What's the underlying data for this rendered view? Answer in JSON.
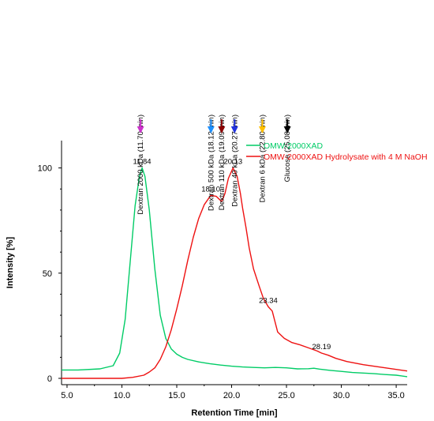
{
  "chart_data": {
    "type": "line",
    "xlabel": "Retention Time [min]",
    "ylabel": "Intensity [%]",
    "xlim": [
      4.5,
      36
    ],
    "ylim": [
      -3,
      113
    ],
    "x_ticks": [
      5.0,
      10.0,
      15.0,
      20.0,
      25.0,
      30.0,
      35.0
    ],
    "x_tick_labels": [
      "5.0",
      "10.0",
      "15.0",
      "20.0",
      "25.0",
      "30.0",
      "35.0"
    ],
    "y_ticks": [
      0,
      50,
      100
    ],
    "y_tick_labels": [
      "0",
      "50",
      "100"
    ],
    "grid": false,
    "legend_position": "top-right",
    "series": [
      {
        "name": "OMW-2000XAD",
        "color": "#00cc66",
        "x": [
          4.5,
          6,
          8,
          9.2,
          9.8,
          10.3,
          10.8,
          11.2,
          11.6,
          11.84,
          12.1,
          12.5,
          13.0,
          13.5,
          14.0,
          14.5,
          15.0,
          15.5,
          16,
          17,
          18,
          19,
          20,
          21,
          22,
          23,
          24,
          25,
          26,
          27,
          27.5,
          28,
          29,
          30,
          31,
          32,
          33,
          34,
          35,
          36
        ],
        "y": [
          4,
          4,
          4.5,
          6,
          12,
          28,
          58,
          82,
          96,
          100,
          96,
          80,
          52,
          30,
          19,
          14,
          11.5,
          10,
          9,
          7.8,
          7,
          6.3,
          5.8,
          5.4,
          5.2,
          5.0,
          5.2,
          5.0,
          4.5,
          4.6,
          4.8,
          4.4,
          3.8,
          3.3,
          2.8,
          2.5,
          2.2,
          1.8,
          1.5,
          0.8
        ]
      },
      {
        "name": "OMW-2000XAD Hydrolysate with 4 M NaOH",
        "color": "#ee1111",
        "x": [
          4.5,
          10,
          11,
          12,
          12.5,
          13,
          13.5,
          14,
          14.5,
          15,
          15.5,
          16,
          16.5,
          17,
          17.5,
          18.1,
          18.6,
          19.1,
          19.4,
          19.7,
          20.13,
          20.5,
          20.8,
          21.0,
          21.3,
          21.6,
          22.0,
          22.5,
          22.9,
          23.34,
          23.7,
          24.2,
          24.8,
          25.5,
          26.2,
          27.0,
          27.8,
          28.19,
          28.8,
          29.5,
          30.5,
          32,
          34,
          36
        ],
        "y": [
          0,
          0,
          0.5,
          1.5,
          3,
          5,
          9,
          15,
          23,
          33,
          44,
          56,
          67,
          76,
          82.5,
          87,
          86.5,
          84,
          88,
          95,
          100,
          96,
          88,
          81,
          72,
          62,
          52,
          44,
          38,
          34,
          32,
          22,
          19,
          17,
          16,
          14.5,
          13,
          12,
          11,
          9.5,
          8,
          6.5,
          5,
          3.5
        ]
      }
    ],
    "peak_labels": [
      {
        "text": "11.84",
        "x": 11.84,
        "y": 100,
        "series": 0
      },
      {
        "text": "18.10",
        "x": 18.1,
        "y": 87,
        "series": 1
      },
      {
        "text": "20.13",
        "x": 20.13,
        "y": 100,
        "series": 1
      },
      {
        "text": "23.34",
        "x": 23.34,
        "y": 34,
        "series": 1
      },
      {
        "text": "28.19",
        "x": 28.19,
        "y": 12,
        "series": 1
      }
    ],
    "standards": [
      {
        "label": "Dextran 2000 kDa (11.70 min)",
        "x": 11.7,
        "color": "#cc33cc"
      },
      {
        "label": "Dextran 500 kDa (18.12 min)",
        "x": 18.12,
        "color": "#1e90ff"
      },
      {
        "label": "Dextran 110 kDa (19.09 min)",
        "x": 19.09,
        "color": "#8b0000"
      },
      {
        "label": "Dextran 40 kDa (20.27 min)",
        "x": 20.27,
        "color": "#2233dd"
      },
      {
        "label": "Dextran 6 kDa (22.80 min)",
        "x": 22.8,
        "color": "#ffbf00"
      },
      {
        "label": "Glucose (25.08 min)",
        "x": 25.08,
        "color": "#000000"
      }
    ]
  }
}
